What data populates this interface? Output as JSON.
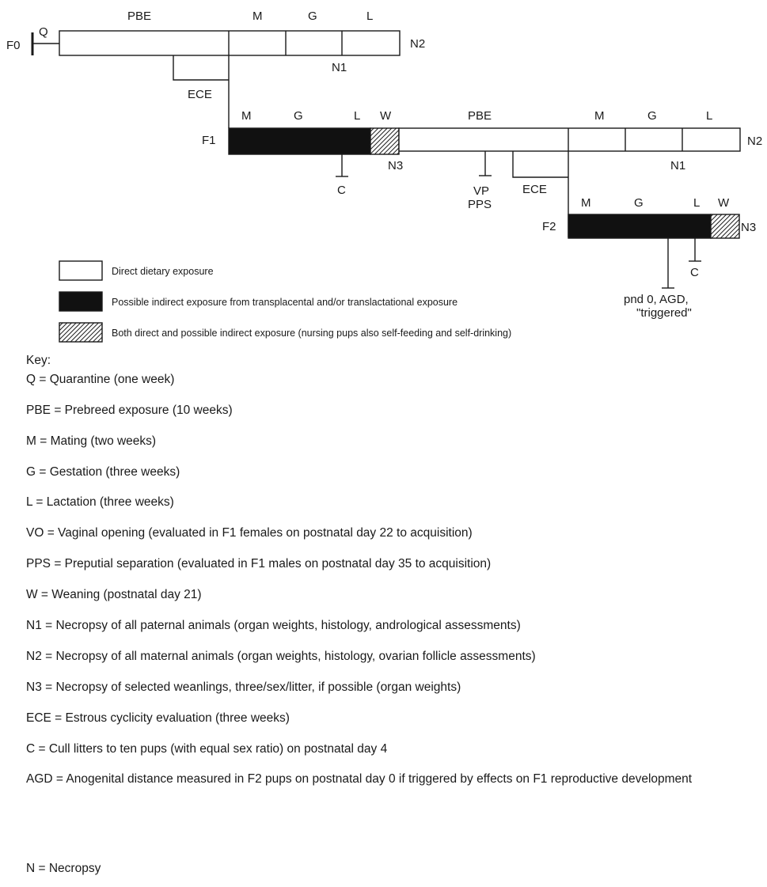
{
  "diagram": {
    "gen_f0": "F0",
    "gen_f1": "F1",
    "gen_f2": "F2",
    "row0": {
      "q": "Q",
      "pbe": "PBE",
      "m": "M",
      "g": "G",
      "l": "L",
      "n1": "N1",
      "n2": "N2",
      "ece": "ECE"
    },
    "row1": {
      "m": "M",
      "g": "G",
      "l": "L",
      "w": "W",
      "pbe": "PBE",
      "m2": "M",
      "g2": "G",
      "l2": "L",
      "n3": "N3",
      "n1": "N1",
      "n2": "N2",
      "c": "C",
      "vp": "VP",
      "pps": "PPS",
      "ece": "ECE"
    },
    "row2": {
      "m": "M",
      "g": "G",
      "l": "L",
      "w": "W",
      "n3": "N3",
      "c": "C",
      "pnd_line1": "pnd 0, AGD,",
      "pnd_line2": "\"triggered\""
    },
    "legend": [
      {
        "style": "white",
        "text": "Direct dietary exposure"
      },
      {
        "style": "black",
        "text": "Possible indirect exposure from transplacental and/or translactational exposure"
      },
      {
        "style": "hatched",
        "text": "Both direct and possible indirect exposure (nursing pups also self-feeding and self-drinking)"
      }
    ]
  },
  "key": {
    "title": "Key:",
    "items": [
      "Q = Quarantine (one week)",
      "PBE = Prebreed exposure (10 weeks)",
      "M = Mating (two weeks)",
      "G = Gestation (three weeks)",
      "L = Lactation (three weeks)",
      "VO = Vaginal opening (evaluated in F1 females on postnatal day 22 to acquisition)",
      "PPS = Preputial separation (evaluated in F1 males on postnatal day 35 to acquisition)",
      "W = Weaning (postnatal day 21)",
      " N1 = Necropsy of all paternal animals (organ weights, histology, andrological assessments)",
      "N2 = Necropsy of all maternal animals (organ weights, histology, ovarian follicle assessments)",
      "N3 = Necropsy of selected weanlings, three/sex/litter, if possible (organ weights)",
      "ECE = Estrous cyclicity evaluation (three weeks)",
      "C = Cull litters to ten pups (with equal sex ratio) on postnatal day 4",
      "AGD = Anogenital distance measured in F2 pups on postnatal day 0 if triggered by effects on F1 reproductive development",
      "N = Necropsy"
    ]
  },
  "colors": {
    "ink": "#1a1a1a",
    "direct": "#ffffff",
    "indirect": "#111111"
  }
}
